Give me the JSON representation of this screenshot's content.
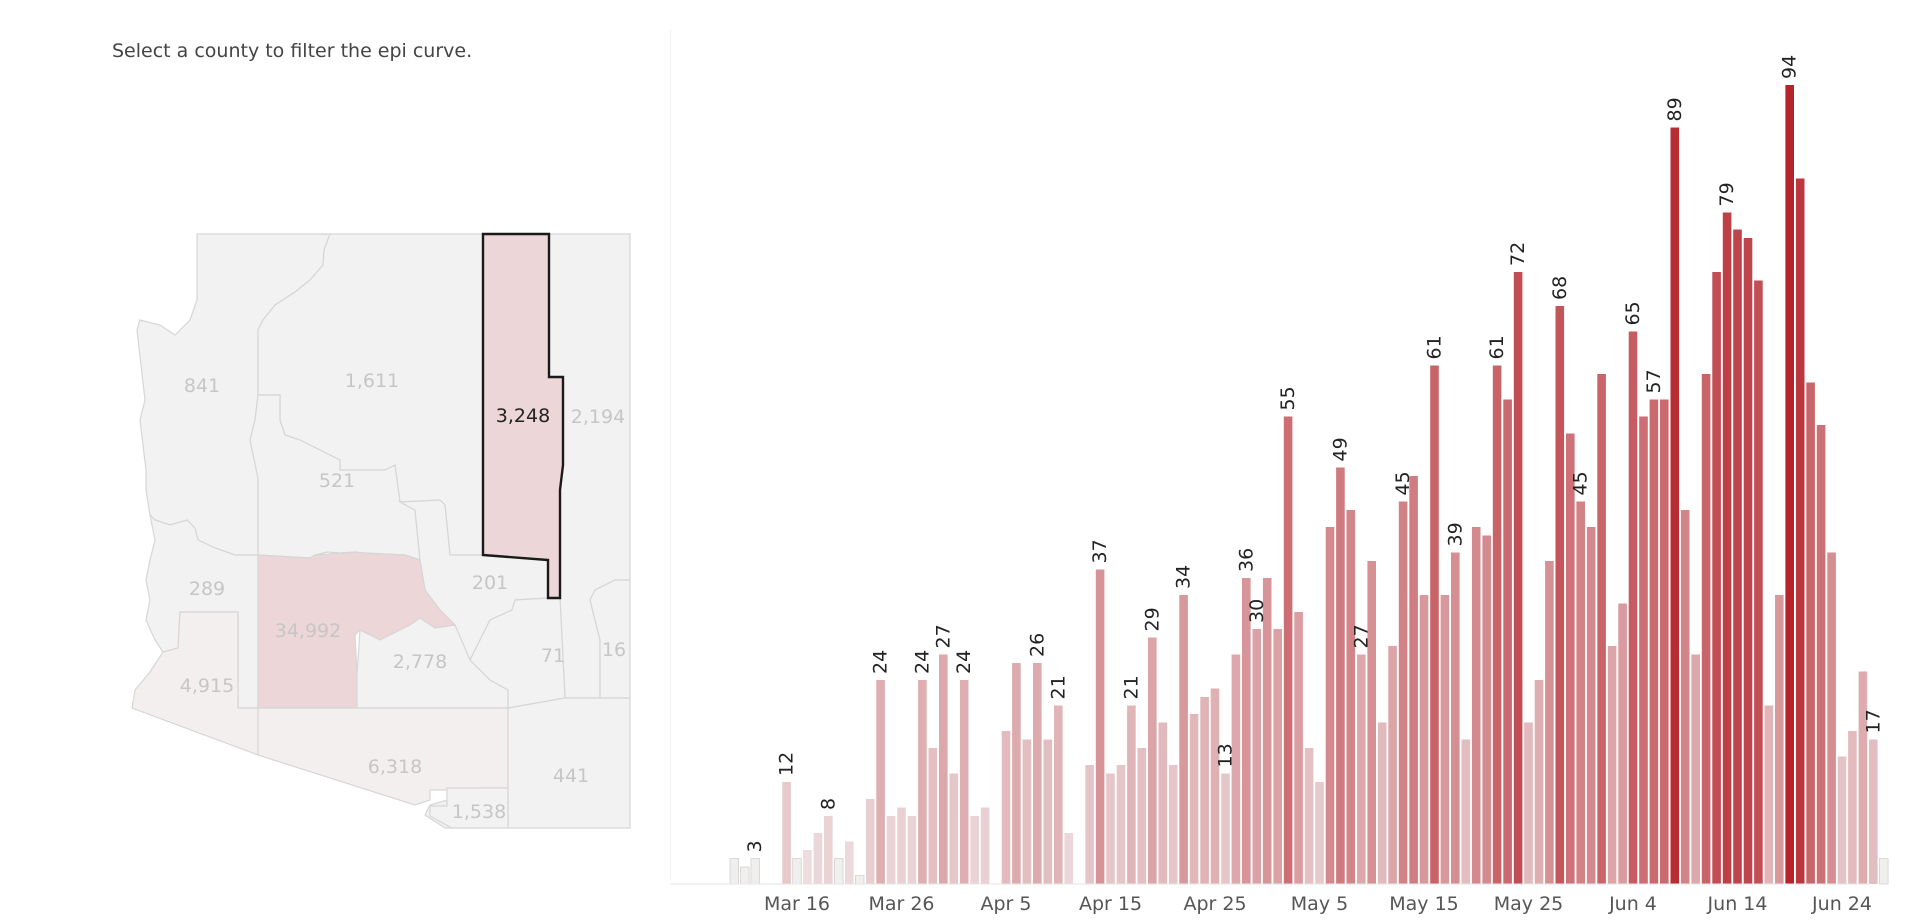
{
  "instruction": "Select a county to filter the epi curve.",
  "colors": {
    "selected_outline": "#1a1a1a",
    "selected_fill": "#ecd6d8",
    "map_default": "#f3f2f3",
    "map_border": "#d6d6d6",
    "bar_low": "#f0e8e9",
    "bar_high": "#b5232b"
  },
  "map": {
    "selected_county": "3,248",
    "county_labels": [
      "841",
      "1,611",
      "3,248",
      "2,194",
      "521",
      "201",
      "289",
      "34,992",
      "2,778",
      "71",
      "16",
      "4,915",
      "6,318",
      "441",
      "1,538"
    ]
  },
  "chart_data": {
    "type": "bar",
    "title": "",
    "xlabel": "",
    "ylabel": "",
    "x_tick_labels": [
      "Mar 16",
      "Mar 26",
      "Apr 5",
      "Apr 15",
      "Apr 25",
      "May 5",
      "May 15",
      "May 25",
      "Jun 4",
      "Jun 14",
      "Jun 24"
    ],
    "start_date": "Mar 10",
    "values": [
      3,
      2,
      3,
      0,
      0,
      12,
      3,
      4,
      6,
      8,
      3,
      5,
      1,
      10,
      24,
      8,
      9,
      8,
      24,
      16,
      27,
      13,
      24,
      8,
      9,
      0,
      18,
      26,
      17,
      26,
      17,
      21,
      6,
      0,
      14,
      37,
      13,
      14,
      21,
      16,
      29,
      19,
      14,
      34,
      20,
      22,
      23,
      13,
      27,
      36,
      30,
      36,
      30,
      55,
      32,
      16,
      12,
      42,
      49,
      44,
      27,
      38,
      19,
      28,
      45,
      48,
      34,
      61,
      34,
      39,
      17,
      42,
      41,
      61,
      57,
      72,
      19,
      24,
      38,
      68,
      53,
      45,
      42,
      60,
      28,
      33,
      65,
      55,
      57,
      57,
      89,
      44,
      27,
      60,
      72,
      79,
      77,
      76,
      71,
      21,
      34,
      94,
      83,
      59,
      54,
      39,
      15,
      18,
      25,
      17,
      3
    ]
  }
}
